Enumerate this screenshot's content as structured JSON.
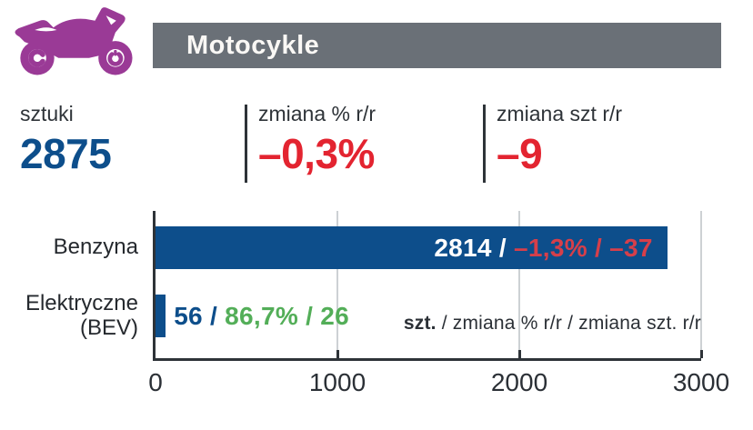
{
  "header": {
    "title": "Motocykle",
    "bar_color": "#6a7077",
    "icon": "motorcycle-icon",
    "icon_color": "#9a3a96"
  },
  "stats": [
    {
      "label": "sztuki",
      "value": "2875",
      "color": "#0d4e8b"
    },
    {
      "label": "zmiana % r/r",
      "value": "–0,3%",
      "color": "#e32430"
    },
    {
      "label": "zmiana szt r/r",
      "value": "–9",
      "color": "#e32430"
    }
  ],
  "chart_data": {
    "type": "bar",
    "orientation": "horizontal",
    "title": "",
    "categories": [
      "Benzyna",
      "Elektryczne (BEV)"
    ],
    "series": [
      {
        "name": "szt.",
        "values": [
          2814,
          56
        ]
      },
      {
        "name": "zmiana % r/r",
        "values": [
          -1.3,
          86.7
        ]
      },
      {
        "name": "zmiana szt. r/r",
        "values": [
          -37,
          26
        ]
      }
    ],
    "xlim": [
      0,
      3000
    ],
    "xticks": [
      0,
      1000,
      2000,
      3000
    ],
    "tick_labels": [
      "0",
      "1000",
      "2000",
      "3000"
    ],
    "bar_color": "#0d4e8b",
    "grid": true,
    "legend_position": "inside-bottom-right"
  },
  "bars": [
    {
      "value_text": "2814 /",
      "change_text": " –1,3% / –37",
      "value_color": "#ffffff",
      "change_color": "#d63f4a"
    },
    {
      "value_text": "56 /",
      "change_text": " 86,7% / 26",
      "value_color": "#0d4e8b",
      "change_color": "#53ae58"
    }
  ],
  "legend": {
    "bold": "szt.",
    "rest": " / zmiana % r/r / zmiana szt. r/r"
  }
}
